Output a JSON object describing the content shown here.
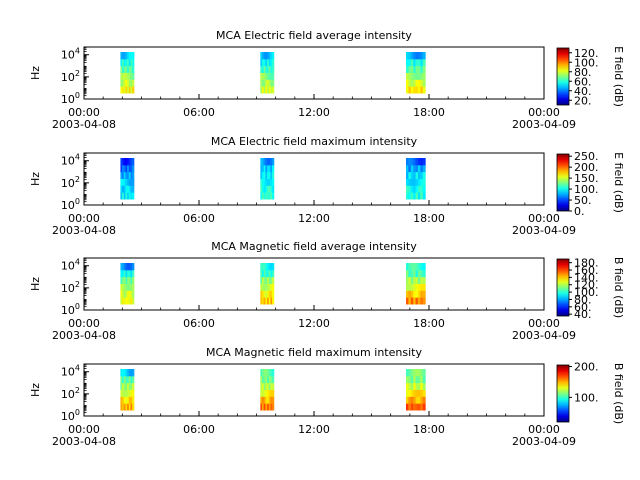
{
  "chart_data": [
    {
      "type": "heatmap",
      "title": "MCA  Electric field average intensity",
      "ylabel": "Hz",
      "yscale": "log",
      "ylim": [
        1,
        50000
      ],
      "y_ticks": [
        {
          "base": "10",
          "exp": "0"
        },
        {
          "base": "10",
          "exp": "2"
        },
        {
          "base": "10",
          "exp": "4"
        }
      ],
      "x_ticks": [
        "00:00",
        "06:00",
        "12:00",
        "18:00",
        "00:00"
      ],
      "x_dates": [
        "2003-04-08",
        "2003-04-09"
      ],
      "colorbar": {
        "label": "E field (dB)",
        "range": [
          10,
          130
        ],
        "ticks": [
          "20.",
          "40.",
          "60.",
          "80.",
          "100.",
          "120."
        ],
        "tick_values": [
          20,
          40,
          60,
          80,
          100,
          120
        ]
      },
      "segments": [
        {
          "start_hour": 1.9,
          "end_hour": 2.6,
          "levels": [
            85,
            78,
            72,
            65,
            58,
            50
          ]
        },
        {
          "start_hour": 9.2,
          "end_hour": 9.9,
          "levels": [
            80,
            75,
            70,
            62,
            55,
            48
          ]
        },
        {
          "start_hour": 16.8,
          "end_hour": 17.8,
          "levels": [
            88,
            80,
            74,
            66,
            58,
            45
          ]
        }
      ]
    },
    {
      "type": "heatmap",
      "title": "MCA  Electric field maximum intensity",
      "ylabel": "Hz",
      "yscale": "log",
      "ylim": [
        1,
        50000
      ],
      "y_ticks": [
        {
          "base": "10",
          "exp": "0"
        },
        {
          "base": "10",
          "exp": "2"
        },
        {
          "base": "10",
          "exp": "4"
        }
      ],
      "x_ticks": [
        "00:00",
        "06:00",
        "12:00",
        "18:00",
        "00:00"
      ],
      "x_dates": [
        "2003-04-08",
        "2003-04-09"
      ],
      "colorbar": {
        "label": "E field (dB)",
        "range": [
          0,
          260
        ],
        "ticks": [
          "0.",
          "50.",
          "100.",
          "150.",
          "200.",
          "250."
        ],
        "tick_values": [
          0,
          50,
          100,
          150,
          200,
          250
        ]
      },
      "segments": [
        {
          "start_hour": 1.9,
          "end_hour": 2.6,
          "levels": [
            95,
            90,
            85,
            75,
            60,
            45
          ]
        },
        {
          "start_hour": 9.2,
          "end_hour": 9.9,
          "levels": [
            110,
            105,
            100,
            95,
            85,
            70
          ]
        },
        {
          "start_hour": 16.8,
          "end_hour": 17.8,
          "levels": [
            105,
            100,
            95,
            90,
            75,
            55
          ]
        }
      ]
    },
    {
      "type": "heatmap",
      "title": "MCA  Magnetic field average intensity",
      "ylabel": "Hz",
      "yscale": "log",
      "ylim": [
        1,
        50000
      ],
      "y_ticks": [
        {
          "base": "10",
          "exp": "0"
        },
        {
          "base": "10",
          "exp": "2"
        },
        {
          "base": "10",
          "exp": "4"
        }
      ],
      "x_ticks": [
        "00:00",
        "06:00",
        "12:00",
        "18:00",
        "00:00"
      ],
      "x_dates": [
        "2003-04-08",
        "2003-04-09"
      ],
      "colorbar": {
        "label": "B field (dB)",
        "range": [
          35,
          190
        ],
        "ticks": [
          "40.",
          "60.",
          "80.",
          "100.",
          "120.",
          "140.",
          "160.",
          "180."
        ],
        "tick_values": [
          40,
          60,
          80,
          100,
          120,
          140,
          160,
          180
        ]
      },
      "segments": [
        {
          "start_hour": 1.9,
          "end_hour": 2.6,
          "levels": [
            130,
            125,
            120,
            110,
            95,
            75
          ]
        },
        {
          "start_hour": 9.2,
          "end_hour": 9.9,
          "levels": [
            140,
            132,
            125,
            115,
            100,
            95
          ]
        },
        {
          "start_hour": 16.8,
          "end_hour": 17.8,
          "levels": [
            150,
            138,
            128,
            118,
            105,
            100
          ]
        }
      ]
    },
    {
      "type": "heatmap",
      "title": "MCA  Magnetic field maximum intensity",
      "ylabel": "Hz",
      "yscale": "log",
      "ylim": [
        1,
        50000
      ],
      "y_ticks": [
        {
          "base": "10",
          "exp": "0"
        },
        {
          "base": "10",
          "exp": "2"
        },
        {
          "base": "10",
          "exp": "4"
        }
      ],
      "x_ticks": [
        "00:00",
        "06:00",
        "12:00",
        "18:00",
        "00:00"
      ],
      "x_dates": [
        "2003-04-08",
        "2003-04-09"
      ],
      "colorbar": {
        "label": "B field (dB)",
        "range": [
          20,
          205
        ],
        "ticks": [
          "100.",
          "200."
        ],
        "tick_values": [
          100,
          200
        ]
      },
      "segments": [
        {
          "start_hour": 1.9,
          "end_hour": 2.6,
          "levels": [
            150,
            140,
            130,
            118,
            105,
            80
          ]
        },
        {
          "start_hour": 9.2,
          "end_hour": 9.9,
          "levels": [
            160,
            148,
            135,
            122,
            110,
            105
          ]
        },
        {
          "start_hour": 16.8,
          "end_hour": 17.8,
          "levels": [
            165,
            150,
            138,
            125,
            112,
            110
          ]
        }
      ]
    }
  ]
}
